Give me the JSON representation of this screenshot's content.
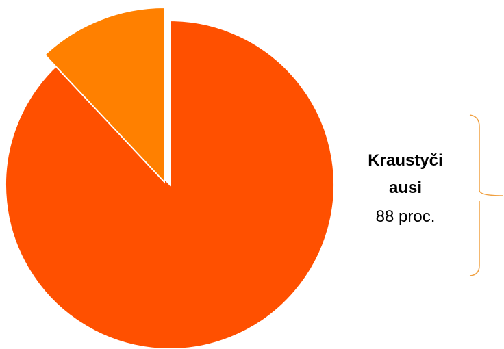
{
  "chart_data": {
    "type": "pie",
    "categories": [
      "Kraustyči ausi",
      null
    ],
    "values": [
      88,
      12
    ],
    "value_labels": [
      "88 proc.",
      null
    ],
    "colors": [
      "#ff5000",
      "#ff8000"
    ]
  }
}
